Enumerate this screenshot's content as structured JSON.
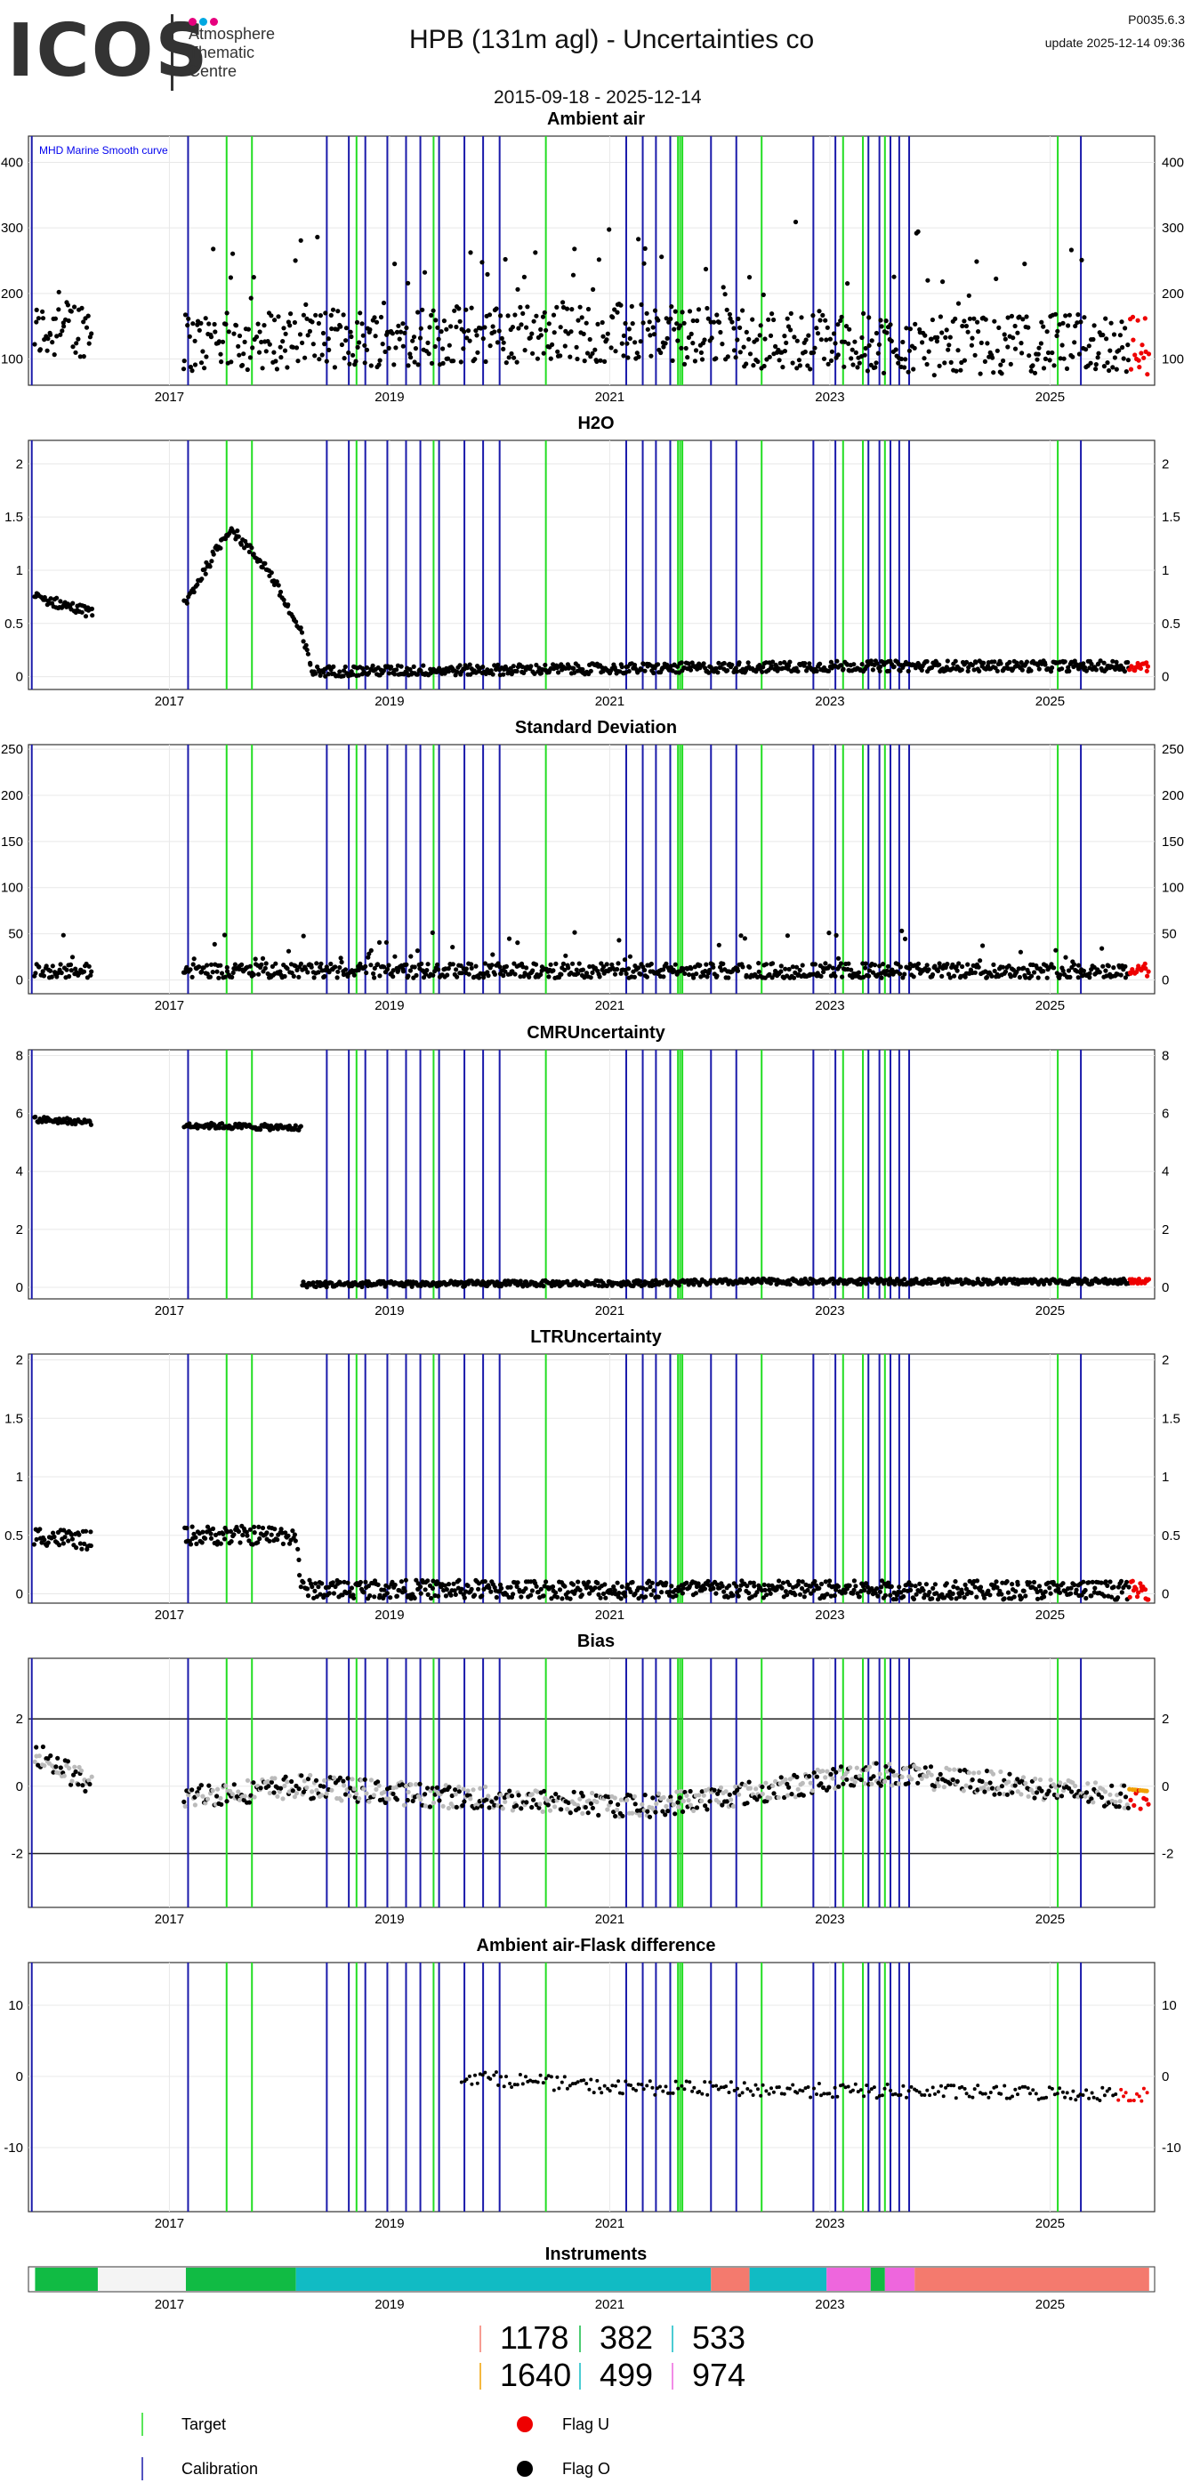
{
  "header": {
    "logo": "ICOS",
    "logo_text_lines": [
      "Atmosphere",
      "Thematic",
      "Centre"
    ],
    "logo_dot_colors": [
      "#e6007e",
      "#00a8e1",
      "#e6007e"
    ],
    "title": "HPB  (131m agl) - Uncertainties co",
    "date_range": "2015-09-18 - 2025-12-14",
    "version": "P0035.6.3",
    "update": "update  2025-12-14 09:36"
  },
  "colors": {
    "target": "#22dd22",
    "calibration": "#1a1aaa",
    "flag_u": "#ee0000",
    "flag_o": "#000000",
    "ambient": "#000000",
    "bias_grey": "#bbbbbb",
    "orange": "#f0a000"
  },
  "x_domain": [
    2015.72,
    2025.95
  ],
  "x_ticks": [
    2017,
    2019,
    2021,
    2023,
    2025
  ],
  "calibration_lines": [
    2015.75,
    2017.17,
    2018.43,
    2018.63,
    2018.78,
    2018.98,
    2019.15,
    2019.28,
    2019.45,
    2019.68,
    2019.85,
    2020.0,
    2021.15,
    2021.3,
    2021.42,
    2021.55,
    2021.92,
    2022.15,
    2022.85,
    2023.05,
    2023.35,
    2023.45,
    2023.55,
    2023.63,
    2023.72,
    2025.28
  ],
  "target_lines": [
    2017.52,
    2017.75,
    2018.7,
    2019.4,
    2020.42,
    2021.62,
    2021.64,
    2021.66,
    2022.38,
    2023.12,
    2023.3,
    2023.5,
    2025.07
  ],
  "chart_data": [
    {
      "type": "scatter",
      "id": "ambient",
      "title": "Ambient air",
      "annotation": "MHD Marine Smooth curve",
      "ylim": [
        60,
        440
      ],
      "y_ticks": [
        100,
        200,
        300,
        400
      ],
      "baseline": [
        [
          2015.78,
          140
        ],
        [
          2016.3,
          150
        ],
        [
          2017.2,
          125
        ],
        [
          2018.2,
          130
        ],
        [
          2019.5,
          135
        ],
        [
          2021.0,
          140
        ],
        [
          2022.5,
          130
        ],
        [
          2024.0,
          120
        ],
        [
          2025.5,
          125
        ],
        [
          2025.9,
          120
        ]
      ],
      "spread": 45,
      "gaps": [
        [
          2016.3,
          2017.13
        ]
      ],
      "red_from": 2025.72
    },
    {
      "type": "scatter",
      "id": "h2o",
      "title": "H2O",
      "ylim": [
        -0.12,
        2.22
      ],
      "y_ticks": [
        0.0,
        0.5,
        1.0,
        1.5,
        2.0
      ],
      "baseline": [
        [
          2015.78,
          0.75
        ],
        [
          2016.3,
          0.6
        ],
        [
          2017.15,
          0.7
        ],
        [
          2017.55,
          1.4
        ],
        [
          2017.9,
          1.0
        ],
        [
          2018.2,
          0.4
        ],
        [
          2018.3,
          0.05
        ],
        [
          2021.5,
          0.08
        ],
        [
          2023.2,
          0.1
        ],
        [
          2025.9,
          0.1
        ]
      ],
      "spread": 0.05,
      "gaps": [
        [
          2016.3,
          2017.13
        ]
      ],
      "red_from": 2025.72
    },
    {
      "type": "scatter",
      "id": "stddev",
      "title": "Standard Deviation",
      "ylim": [
        -15,
        255
      ],
      "y_ticks": [
        0,
        50,
        100,
        150,
        200,
        250
      ],
      "baseline": [
        [
          2015.78,
          10
        ],
        [
          2025.9,
          10
        ]
      ],
      "spread": 8,
      "gaps": [
        [
          2016.3,
          2017.13
        ]
      ],
      "red_from": 2025.72
    },
    {
      "type": "scatter",
      "id": "cmr",
      "title": "CMRUncertainty",
      "ylim": [
        -0.4,
        8.2
      ],
      "y_ticks": [
        0,
        2,
        4,
        6,
        8
      ],
      "baseline": [
        [
          2015.78,
          5.8
        ],
        [
          2016.3,
          5.7
        ],
        [
          2017.15,
          5.6
        ],
        [
          2018.2,
          5.5
        ],
        [
          2018.21,
          0.1
        ],
        [
          2021.6,
          0.15
        ],
        [
          2022.3,
          0.2
        ],
        [
          2025.9,
          0.2
        ]
      ],
      "spread": 0.1,
      "gaps": [
        [
          2016.3,
          2017.13
        ]
      ],
      "red_from": 2025.72
    },
    {
      "type": "scatter",
      "id": "ltr",
      "title": "LTRUncertainty",
      "ylim": [
        -0.08,
        2.05
      ],
      "y_ticks": [
        0.0,
        0.5,
        1.0,
        1.5,
        2.0
      ],
      "baseline": [
        [
          2015.78,
          0.5
        ],
        [
          2016.3,
          0.45
        ],
        [
          2017.15,
          0.5
        ],
        [
          2018.15,
          0.5
        ],
        [
          2018.2,
          0.04
        ],
        [
          2025.9,
          0.03
        ]
      ],
      "spread": 0.08,
      "gaps": [
        [
          2016.3,
          2017.13
        ]
      ],
      "red_from": 2025.72
    },
    {
      "type": "scatter",
      "id": "bias",
      "title": "Bias",
      "ylim": [
        -3.6,
        3.8
      ],
      "y_ticks": [
        -2,
        0,
        2
      ],
      "hlines": [
        -2,
        2
      ],
      "baseline": [
        [
          2015.78,
          1.0
        ],
        [
          2016.3,
          0.0
        ],
        [
          2017.15,
          -0.3
        ],
        [
          2018.2,
          0.0
        ],
        [
          2019.5,
          -0.3
        ],
        [
          2021.3,
          -0.6
        ],
        [
          2022.5,
          -0.1
        ],
        [
          2023.3,
          0.4
        ],
        [
          2024.5,
          0.1
        ],
        [
          2025.3,
          -0.2
        ],
        [
          2025.9,
          -0.4
        ]
      ],
      "spread": 0.35,
      "gaps": [
        [
          2016.3,
          2017.13
        ]
      ],
      "red_from": 2025.72
    },
    {
      "type": "scatter",
      "id": "flask",
      "title": "Ambient air-Flask difference",
      "ylim": [
        -19,
        16
      ],
      "y_ticks": [
        -10,
        0,
        10
      ],
      "baseline": [
        [
          2019.65,
          0.0
        ],
        [
          2021.0,
          -1.5
        ],
        [
          2023.0,
          -2.0
        ],
        [
          2025.9,
          -2.5
        ]
      ],
      "spread": 1.0,
      "gaps": [],
      "red_from": 2025.6,
      "sparse_from": 2019.65
    },
    {
      "type": "table",
      "id": "instruments",
      "title": "Instruments",
      "segments": [
        {
          "from": 2015.78,
          "to": 2016.35,
          "color": "#11bb44"
        },
        {
          "from": 2016.35,
          "to": 2017.15,
          "color": "#f4f4f4"
        },
        {
          "from": 2017.15,
          "to": 2018.15,
          "color": "#11bb44"
        },
        {
          "from": 2018.15,
          "to": 2021.92,
          "color": "#11bbc4"
        },
        {
          "from": 2021.92,
          "to": 2022.27,
          "color": "#f47a6e"
        },
        {
          "from": 2022.27,
          "to": 2022.97,
          "color": "#11bbc4"
        },
        {
          "from": 2022.97,
          "to": 2023.37,
          "color": "#ee66dd"
        },
        {
          "from": 2023.37,
          "to": 2023.5,
          "color": "#11bb44"
        },
        {
          "from": 2023.5,
          "to": 2023.77,
          "color": "#ee66dd"
        },
        {
          "from": 2023.77,
          "to": 2025.9,
          "color": "#f47a6e"
        }
      ]
    }
  ],
  "instrument_legend": [
    {
      "id": "1178",
      "color": "#f47a6e"
    },
    {
      "id": "382",
      "color": "#11bb44"
    },
    {
      "id": "533",
      "color": "#11bbc4"
    },
    {
      "id": "1640",
      "color": "#f0a000"
    },
    {
      "id": "499",
      "color": "#11bbc4"
    },
    {
      "id": "974",
      "color": "#ee66dd"
    }
  ],
  "legend": {
    "target": "Target",
    "calibration": "Calibration",
    "flag_u": "Flag U",
    "flag_o": "Flag O"
  }
}
